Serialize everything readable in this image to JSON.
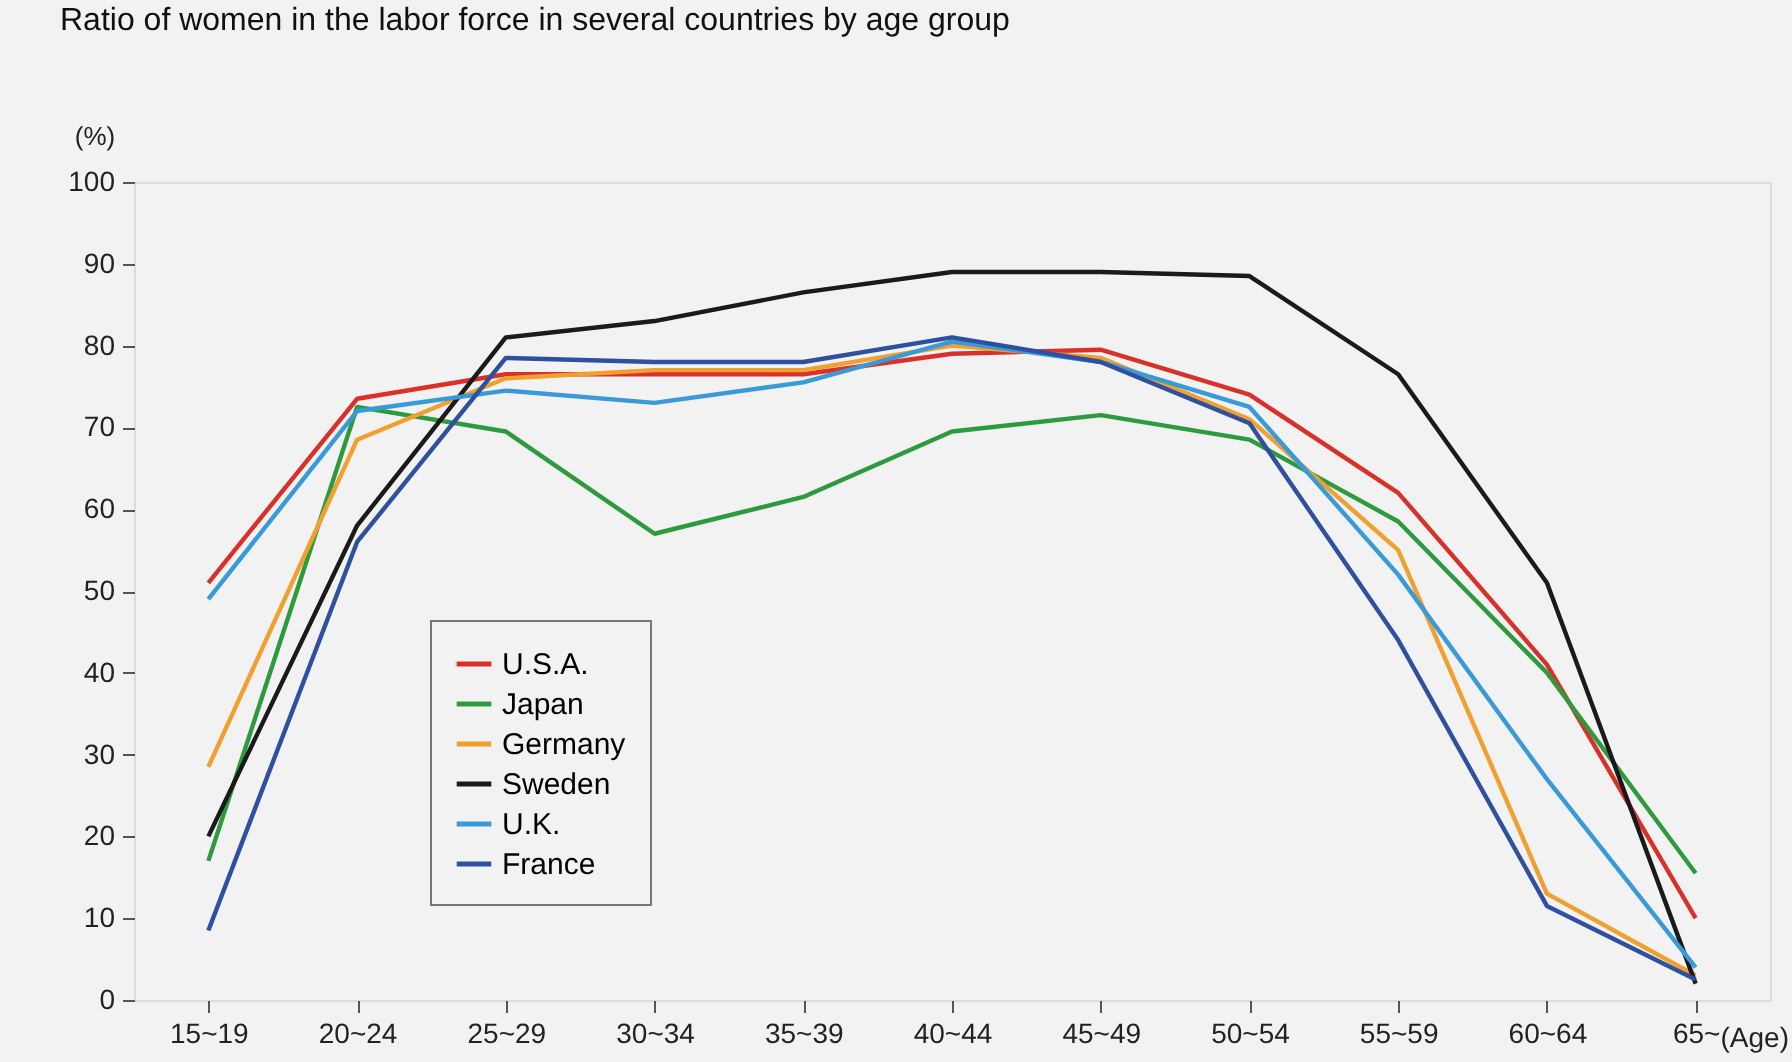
{
  "chart_data": {
    "type": "line",
    "title": "Ratio of women in the labor force in several countries by age group",
    "ylabel": "(%)",
    "xlabel": "(Age)",
    "categories": [
      "15~19",
      "20~24",
      "25~29",
      "30~34",
      "35~39",
      "40~44",
      "45~49",
      "50~54",
      "55~59",
      "60~64",
      "65~"
    ],
    "series": [
      {
        "name": "U.S.A.",
        "color": "#d9302a",
        "values": [
          51,
          73.5,
          76.5,
          76.5,
          76.5,
          79,
          79.5,
          74,
          62,
          41,
          10
        ]
      },
      {
        "name": "Japan",
        "color": "#2e9a3e",
        "values": [
          17,
          72.5,
          69.5,
          57,
          61.5,
          69.5,
          71.5,
          68.5,
          58.5,
          40,
          15.5
        ]
      },
      {
        "name": "Germany",
        "color": "#f0a030",
        "values": [
          28.5,
          68.5,
          76,
          77,
          77,
          80,
          78.5,
          71,
          55,
          13,
          3
        ]
      },
      {
        "name": "Sweden",
        "color": "#1a1a1a",
        "values": [
          20,
          58,
          81,
          83,
          86.5,
          89,
          89,
          88.5,
          76.5,
          51,
          2
        ]
      },
      {
        "name": "U.K.",
        "color": "#3a9ad8",
        "values": [
          49,
          72,
          74.5,
          73,
          75.5,
          80.5,
          78,
          72.5,
          52,
          27,
          4
        ]
      },
      {
        "name": "France",
        "color": "#2f4f9f",
        "values": [
          8.5,
          56,
          78.5,
          78,
          78,
          81,
          78,
          70.5,
          44,
          11.5,
          2.5
        ]
      }
    ],
    "ylim": [
      0,
      100
    ],
    "yticks": [
      0,
      10,
      20,
      30,
      40,
      50,
      60,
      70,
      80,
      90,
      100
    ],
    "grid": false,
    "legend": "bottom left",
    "marker": "none",
    "line_style": "solid"
  }
}
